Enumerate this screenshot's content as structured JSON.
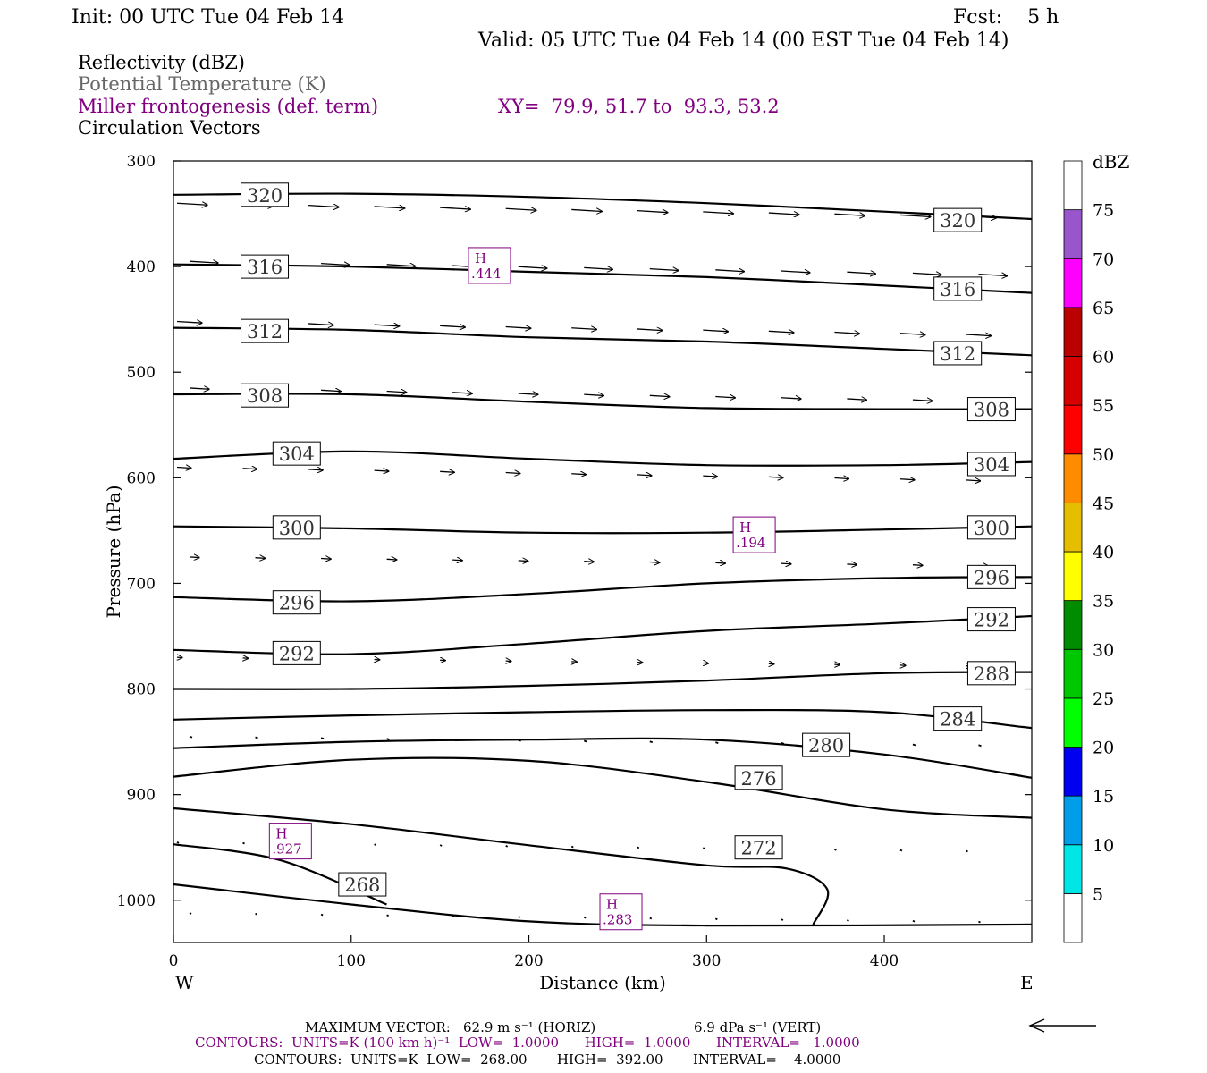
{
  "header": {
    "init": "Init: 00 UTC Tue 04 Feb 14",
    "fcst": "Fcst:    5 h",
    "valid": "Valid: 05 UTC Tue 04 Feb 14 (00 EST Tue 04 Feb 14)"
  },
  "fields": {
    "reflectivity": "Reflectivity (dBZ)",
    "theta": "Potential Temperature (K)",
    "miller": "Miller frontogenesis (def. term)",
    "xy": "XY=  79.9, 51.7 to  93.3, 53.2",
    "vectors": "Circulation Vectors"
  },
  "colors": {
    "purple": "#800080",
    "contour": "#000000"
  },
  "chart_data": {
    "type": "cross-section",
    "xlabel": "Distance (km)",
    "ylabel": "Pressure (hPa)",
    "xlim": [
      0,
      483
    ],
    "ylim": [
      1040,
      300
    ],
    "xticks": [
      0,
      100,
      200,
      300,
      400
    ],
    "yticks": [
      300,
      400,
      500,
      600,
      700,
      800,
      900,
      1000
    ],
    "west_label": "W",
    "east_label": "E",
    "theta_contours": [
      {
        "label": "320",
        "points": [
          [
            0,
            332
          ],
          [
            100,
            331
          ],
          [
            200,
            334
          ],
          [
            300,
            340
          ],
          [
            400,
            348
          ],
          [
            483,
            355
          ]
        ]
      },
      {
        "label": "316",
        "points": [
          [
            0,
            398
          ],
          [
            100,
            400
          ],
          [
            200,
            405
          ],
          [
            300,
            410
          ],
          [
            400,
            418
          ],
          [
            483,
            425
          ]
        ]
      },
      {
        "label": "312",
        "points": [
          [
            0,
            458
          ],
          [
            100,
            460
          ],
          [
            200,
            467
          ],
          [
            300,
            471
          ],
          [
            400,
            478
          ],
          [
            483,
            484
          ]
        ]
      },
      {
        "label": "308",
        "points": [
          [
            0,
            521
          ],
          [
            100,
            521
          ],
          [
            200,
            528
          ],
          [
            300,
            534
          ],
          [
            400,
            535
          ],
          [
            483,
            535
          ]
        ]
      },
      {
        "label": "304",
        "points": [
          [
            0,
            582
          ],
          [
            100,
            575
          ],
          [
            200,
            582
          ],
          [
            300,
            588
          ],
          [
            400,
            588
          ],
          [
            483,
            585
          ]
        ]
      },
      {
        "label": "300",
        "points": [
          [
            0,
            646
          ],
          [
            100,
            648
          ],
          [
            200,
            652
          ],
          [
            300,
            652
          ],
          [
            400,
            649
          ],
          [
            483,
            646
          ]
        ]
      },
      {
        "label": "296",
        "points": [
          [
            0,
            713
          ],
          [
            100,
            717
          ],
          [
            200,
            710
          ],
          [
            300,
            700
          ],
          [
            400,
            695
          ],
          [
            483,
            694
          ]
        ]
      },
      {
        "label": "292",
        "points": [
          [
            0,
            763
          ],
          [
            100,
            767
          ],
          [
            200,
            757
          ],
          [
            300,
            745
          ],
          [
            400,
            738
          ],
          [
            483,
            731
          ]
        ]
      },
      {
        "label": "288",
        "points": [
          [
            0,
            800
          ],
          [
            100,
            800
          ],
          [
            200,
            797
          ],
          [
            300,
            792
          ],
          [
            400,
            785
          ],
          [
            483,
            784
          ]
        ]
      },
      {
        "label": "284",
        "points": [
          [
            0,
            829
          ],
          [
            100,
            825
          ],
          [
            200,
            822
          ],
          [
            300,
            820
          ],
          [
            400,
            822
          ],
          [
            483,
            837
          ]
        ]
      },
      {
        "label": "280",
        "points": [
          [
            0,
            856
          ],
          [
            100,
            850
          ],
          [
            200,
            848
          ],
          [
            300,
            848
          ],
          [
            400,
            862
          ],
          [
            483,
            884
          ]
        ]
      },
      {
        "label": "276",
        "points": [
          [
            0,
            883
          ],
          [
            100,
            867
          ],
          [
            200,
            868
          ],
          [
            300,
            888
          ],
          [
            400,
            914
          ],
          [
            483,
            922
          ]
        ]
      },
      {
        "label": "272",
        "points": [
          [
            0,
            913
          ],
          [
            100,
            928
          ],
          [
            200,
            948
          ],
          [
            300,
            967
          ],
          [
            345,
            970
          ],
          [
            368,
            990
          ],
          [
            360,
            1023
          ]
        ]
      },
      {
        "label": "268",
        "points": [
          [
            0,
            947
          ],
          [
            60,
            962
          ],
          [
            120,
            1004
          ]
        ]
      },
      {
        "label": "",
        "points": [
          [
            0,
            985
          ],
          [
            100,
            1004
          ],
          [
            200,
            1020
          ],
          [
            300,
            1024
          ],
          [
            483,
            1023
          ]
        ]
      }
    ],
    "theta_label_positions": [
      {
        "text": "320",
        "x": 38,
        "p": 332
      },
      {
        "text": "320",
        "x": 428,
        "p": 356
      },
      {
        "text": "316",
        "x": 38,
        "p": 400
      },
      {
        "text": "316",
        "x": 428,
        "p": 421
      },
      {
        "text": "312",
        "x": 38,
        "p": 461
      },
      {
        "text": "312",
        "x": 428,
        "p": 482
      },
      {
        "text": "308",
        "x": 38,
        "p": 522
      },
      {
        "text": "308",
        "x": 447,
        "p": 535
      },
      {
        "text": "304",
        "x": 56,
        "p": 577
      },
      {
        "text": "304",
        "x": 447,
        "p": 587
      },
      {
        "text": "300",
        "x": 56,
        "p": 647
      },
      {
        "text": "300",
        "x": 447,
        "p": 647
      },
      {
        "text": "296",
        "x": 56,
        "p": 718
      },
      {
        "text": "296",
        "x": 447,
        "p": 694
      },
      {
        "text": "292",
        "x": 56,
        "p": 766
      },
      {
        "text": "292",
        "x": 447,
        "p": 734
      },
      {
        "text": "288",
        "x": 447,
        "p": 785
      },
      {
        "text": "284",
        "x": 428,
        "p": 828
      },
      {
        "text": "280",
        "x": 354,
        "p": 853
      },
      {
        "text": "276",
        "x": 316,
        "p": 884
      },
      {
        "text": "272",
        "x": 316,
        "p": 950
      },
      {
        "text": "268",
        "x": 93,
        "p": 985
      }
    ],
    "frontogenesis_highs": [
      {
        "label": "H",
        "value": ".444",
        "x": 166,
        "p": 399
      },
      {
        "label": "H",
        "value": ".194",
        "x": 315,
        "p": 654
      },
      {
        "label": "H",
        "value": ".927",
        "x": 54,
        "p": 944
      },
      {
        "label": "H",
        "value": ".283",
        "x": 240,
        "p": 1011
      }
    ],
    "vector_rows": [
      {
        "p": 340,
        "xs": [
          0,
          37,
          74,
          111,
          148,
          185,
          222,
          259,
          296,
          333,
          370,
          407,
          444
        ],
        "len": 34
      },
      {
        "p": 395,
        "xs": [
          0,
          37,
          74,
          111,
          148,
          185,
          222,
          259,
          296,
          333,
          370,
          407,
          444
        ],
        "len": 32
      },
      {
        "p": 452,
        "xs": [
          0,
          37,
          74,
          111,
          148,
          185,
          222,
          259,
          296,
          333,
          370,
          407,
          444
        ],
        "len": 28
      },
      {
        "p": 515,
        "xs": [
          0,
          37,
          74,
          111,
          148,
          185,
          222,
          259,
          296,
          333,
          370,
          407,
          444
        ],
        "len": 22
      },
      {
        "p": 590,
        "xs": [
          0,
          37,
          74,
          111,
          148,
          185,
          222,
          259,
          296,
          333,
          370,
          407,
          444
        ],
        "len": 16
      },
      {
        "p": 675,
        "xs": [
          0,
          37,
          74,
          111,
          148,
          185,
          222,
          259,
          296,
          333,
          370,
          407,
          444
        ],
        "len": 11
      },
      {
        "p": 770,
        "xs": [
          0,
          37,
          74,
          111,
          148,
          185,
          222,
          259,
          296,
          333,
          370,
          407,
          444
        ],
        "len": 6
      },
      {
        "p": 845,
        "xs": [
          0,
          37,
          74,
          111,
          148,
          185,
          222,
          259,
          296,
          333,
          370,
          407,
          444
        ],
        "len": 3
      },
      {
        "p": 945,
        "xs": [
          0,
          37,
          74,
          111,
          148,
          185,
          222,
          259,
          296,
          333,
          370,
          407,
          444
        ],
        "len": 2
      },
      {
        "p": 1012,
        "xs": [
          0,
          37,
          74,
          111,
          148,
          185,
          222,
          259,
          296,
          333,
          370,
          407,
          444
        ],
        "len": 2
      }
    ],
    "colorbar": {
      "title": "dBZ",
      "labels": [
        "5",
        "10",
        "15",
        "20",
        "25",
        "30",
        "35",
        "40",
        "45",
        "50",
        "55",
        "60",
        "65",
        "70",
        "75"
      ],
      "colors": [
        "#ffffff",
        "#00e6e6",
        "#009ee8",
        "#0000f0",
        "#00ff00",
        "#00c800",
        "#008c00",
        "#ffff00",
        "#e6be00",
        "#ff8c00",
        "#ff0000",
        "#d70000",
        "#bb0000",
        "#ff00ff",
        "#9955cc",
        "#ffffff"
      ]
    }
  },
  "footer": {
    "max_vector_label": "MAXIMUM VECTOR:",
    "max_vector_horiz": "62.9 m s⁻¹ (HORIZ)",
    "max_vector_vert": "6.9 dPa s⁻¹ (VERT)",
    "contours_fg": "CONTOURS:  UNITS=K (100 km h)⁻¹  LOW=  1.0000      HIGH=  1.0000      INTERVAL=   1.0000",
    "contours_theta": "CONTOURS:  UNITS=K  LOW=  268.00       HIGH=  392.00       INTERVAL=    4.0000"
  }
}
